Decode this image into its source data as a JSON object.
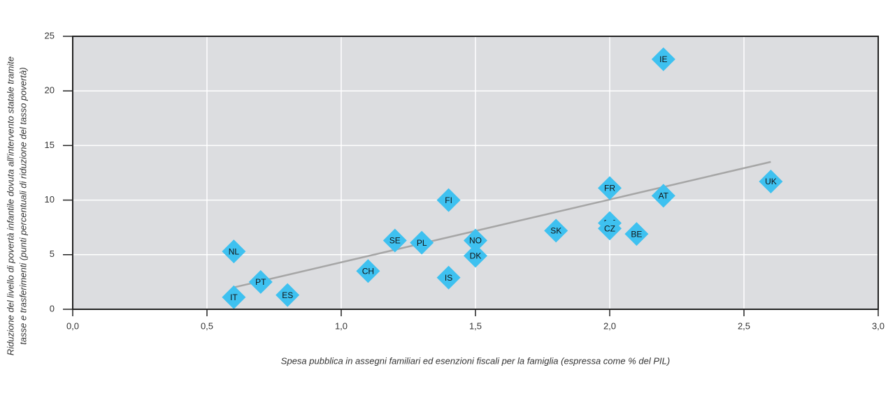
{
  "chart_data": {
    "type": "scatter",
    "xlabel": "Spesa pubblica in assegni familiari ed esenzioni fiscali per la famiglia (espressa come % del PIL)",
    "ylabel": [
      "Riduzione del livello di povertà infantile dovuta all'intervento statale tramite",
      "tasse e trasferimenti (punti percentuali di riduzione del tasso povertà)"
    ],
    "point_labels": [
      "NL",
      "IT",
      "PT",
      "ES",
      "CH",
      "SE",
      "PL",
      "FI",
      "IS",
      "NO",
      "DK",
      "SK",
      "DE",
      "CZ",
      "FR",
      "BE",
      "AT",
      "IE",
      "UK"
    ],
    "x": [
      0.6,
      0.6,
      0.7,
      0.8,
      1.1,
      1.2,
      1.3,
      1.4,
      1.4,
      1.5,
      1.5,
      1.8,
      2.0,
      2.0,
      2.0,
      2.1,
      2.2,
      2.2,
      2.6
    ],
    "values": [
      5.3,
      1.1,
      2.5,
      1.3,
      3.5,
      6.3,
      6.1,
      10.0,
      2.9,
      6.3,
      4.9,
      7.2,
      7.9,
      7.4,
      11.1,
      6.9,
      10.4,
      22.9,
      11.7
    ],
    "color": "#3ec1f0",
    "trendline": {
      "x": [
        0.6,
        2.6
      ],
      "values": [
        2.0,
        13.5
      ],
      "color": "#a6a6a6"
    },
    "xlim": [
      0,
      3
    ],
    "ylim": [
      0,
      25
    ],
    "xticks": [
      {
        "value": 0,
        "label": "0,0"
      },
      {
        "value": 0.5,
        "label": "0,5"
      },
      {
        "value": 1,
        "label": "1,0"
      },
      {
        "value": 1.5,
        "label": "1,5"
      },
      {
        "value": 2,
        "label": "2,0"
      },
      {
        "value": 2.5,
        "label": "2,5"
      },
      {
        "value": 3,
        "label": "3,0"
      }
    ],
    "yticks": [
      0,
      5,
      10,
      15,
      20,
      25
    ],
    "grid": true
  }
}
